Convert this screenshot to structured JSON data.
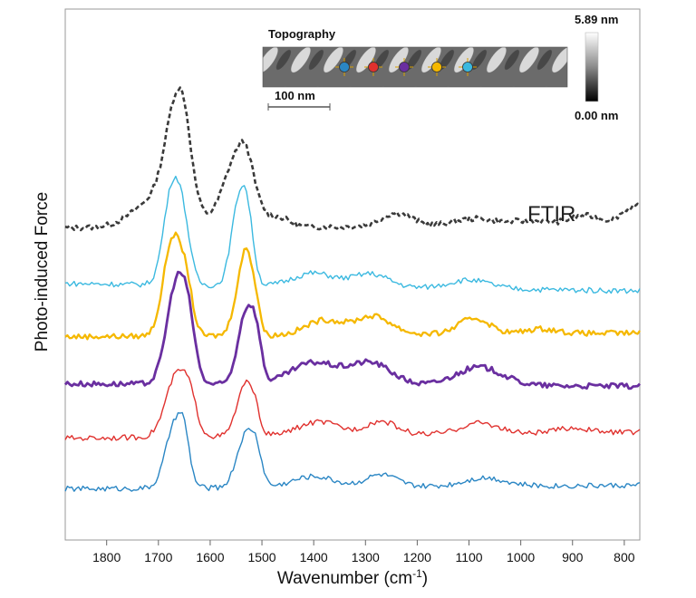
{
  "chart_data": {
    "type": "line",
    "xlabel": "Wavenumber (cm",
    "xlabel_sup": "-1",
    "xlabel_close": ")",
    "ylabel": "Photo-induced Force",
    "xlim": [
      1880,
      770
    ],
    "x_reversed": true,
    "x_ticks": [
      1800,
      1700,
      1600,
      1500,
      1400,
      1300,
      1200,
      1100,
      1000,
      900,
      800
    ],
    "grid": false,
    "annotation": "FTIR",
    "series": [
      {
        "color": "#3a3a3a",
        "style": "dashed",
        "width": 2.6,
        "offset": 5,
        "peaks": [
          [
            1700,
            1.2,
            45
          ],
          [
            1662,
            4.6,
            22
          ],
          [
            1648,
            0.6,
            10
          ],
          [
            1545,
            3.0,
            28
          ],
          [
            1530,
            0.7,
            12
          ],
          [
            1465,
            0.35,
            20
          ],
          [
            1240,
            0.55,
            30
          ],
          [
            1090,
            0.3,
            40
          ],
          [
            980,
            0.2,
            40
          ],
          [
            875,
            0.4,
            30
          ],
          [
            780,
            0.8,
            25
          ]
        ],
        "baseline": [
          0.5,
          0.6
        ]
      },
      {
        "color": "#3bb9e0",
        "style": "solid",
        "width": 1.4,
        "offset": 4,
        "peaks": [
          [
            1675,
            3.6,
            16
          ],
          [
            1652,
            2.2,
            14
          ],
          [
            1547,
            2.9,
            14
          ],
          [
            1528,
            2.5,
            12
          ],
          [
            1400,
            0.55,
            40
          ],
          [
            1290,
            0.55,
            35
          ],
          [
            1100,
            0.35,
            40
          ]
        ],
        "baseline": [
          0.3,
          0.0
        ]
      },
      {
        "color": "#f5b800",
        "style": "solid",
        "width": 2.3,
        "offset": 3,
        "peaks": [
          [
            1672,
            4.0,
            18
          ],
          [
            1645,
            1.5,
            12
          ],
          [
            1540,
            2.2,
            14
          ],
          [
            1526,
            2.0,
            10
          ],
          [
            1510,
            1.0,
            8
          ],
          [
            1380,
            0.6,
            35
          ],
          [
            1285,
            0.75,
            35
          ],
          [
            1090,
            0.65,
            30
          ],
          [
            960,
            0.2,
            30
          ]
        ],
        "baseline": [
          0.2,
          0.35
        ]
      },
      {
        "color": "#6a2fa0",
        "style": "solid",
        "width": 2.8,
        "offset": 2,
        "peaks": [
          [
            1663,
            4.3,
            20
          ],
          [
            1640,
            1.2,
            12
          ],
          [
            1530,
            3.0,
            16
          ],
          [
            1510,
            1.2,
            10
          ],
          [
            1400,
            0.9,
            45
          ],
          [
            1290,
            0.9,
            40
          ],
          [
            1080,
            0.75,
            45
          ]
        ],
        "baseline": [
          0.35,
          0.25
        ]
      },
      {
        "color": "#e0312e",
        "style": "solid",
        "width": 1.4,
        "offset": 1,
        "peaks": [
          [
            1663,
            2.6,
            22
          ],
          [
            1638,
            0.8,
            12
          ],
          [
            1533,
            2.0,
            16
          ],
          [
            1515,
            0.7,
            10
          ],
          [
            1390,
            0.55,
            40
          ],
          [
            1270,
            0.55,
            30
          ],
          [
            1080,
            0.45,
            35
          ],
          [
            900,
            0.2,
            30
          ]
        ],
        "baseline": [
          0.2,
          0.45
        ]
      },
      {
        "color": "#2a86c4",
        "style": "solid",
        "width": 1.4,
        "offset": 0,
        "peaks": [
          [
            1668,
            2.6,
            18
          ],
          [
            1650,
            1.2,
            10
          ],
          [
            1530,
            2.2,
            18
          ],
          [
            1510,
            0.8,
            10
          ],
          [
            1400,
            0.45,
            40
          ],
          [
            1270,
            0.5,
            30
          ],
          [
            1070,
            0.35,
            40
          ]
        ],
        "baseline": [
          0.2,
          0.35
        ]
      }
    ],
    "inset": {
      "title": "Topography",
      "scalebar_label": "100 nm",
      "colorbar_max": "5.89 nm",
      "colorbar_min": "0.00 nm",
      "markers": [
        "#2a86c4",
        "#e0312e",
        "#6a2fa0",
        "#f5b800",
        "#3bb9e0"
      ]
    }
  }
}
